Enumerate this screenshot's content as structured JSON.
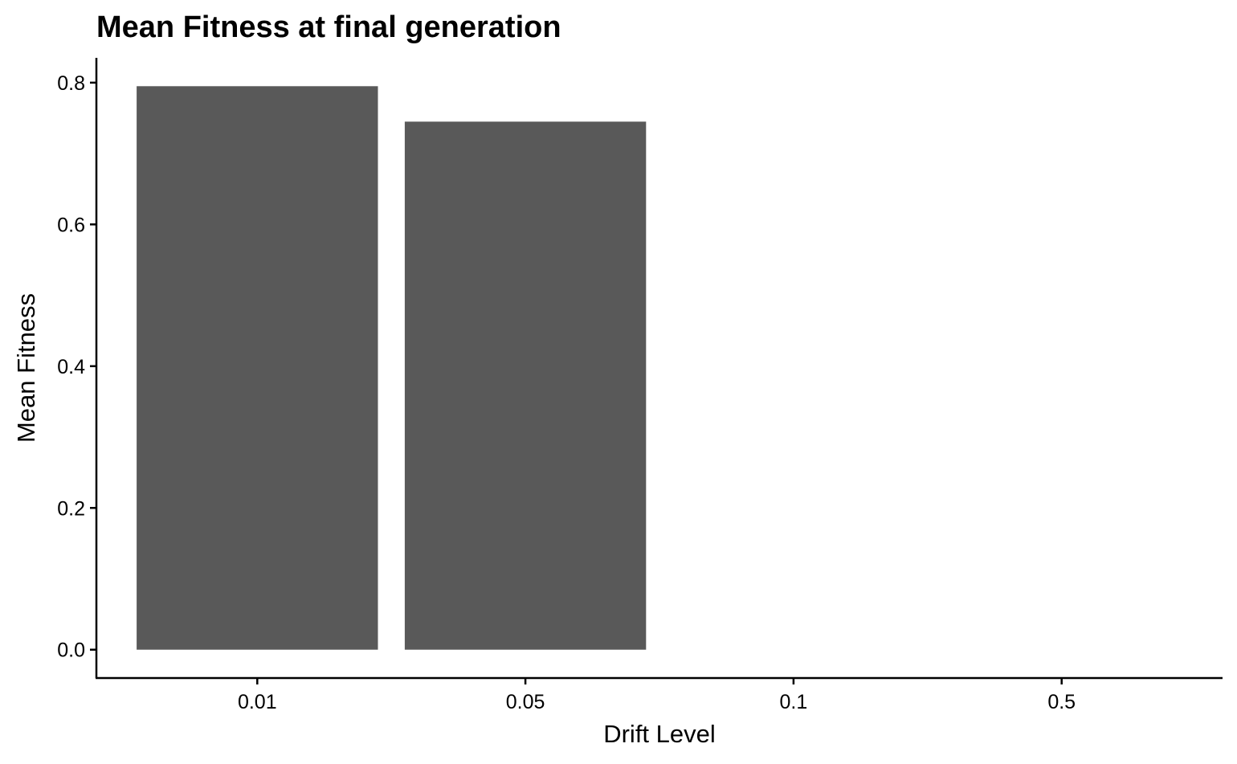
{
  "chart_data": {
    "type": "bar",
    "title": "Mean Fitness at final generation",
    "xlabel": "Drift Level",
    "ylabel": "Mean Fitness",
    "categories": [
      "0.01",
      "0.05",
      "0.1",
      "0.5"
    ],
    "values": [
      0.795,
      0.745,
      null,
      null
    ],
    "y_ticks": [
      "0.0",
      "0.2",
      "0.4",
      "0.6",
      "0.8"
    ],
    "ylim": [
      -0.04,
      0.835
    ],
    "bar_color": "#595959",
    "grid": false,
    "legend": "none"
  }
}
